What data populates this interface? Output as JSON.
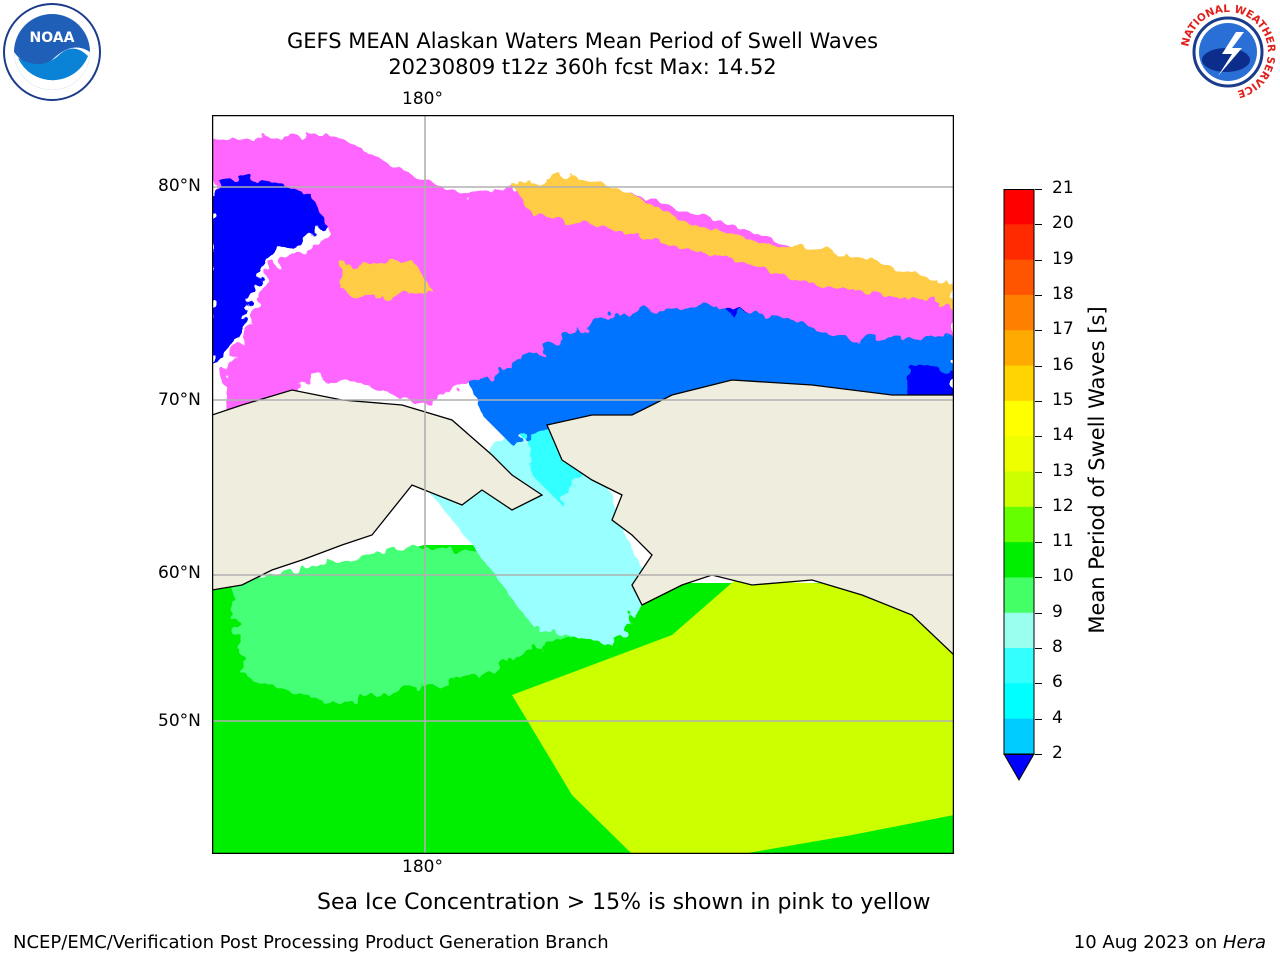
{
  "header": {
    "title_line1": "GEFS MEAN Alaskan Waters Mean Period of Swell Waves",
    "title_line2": "20230809 t12z 360h fcst   Max: 14.52"
  },
  "logos": {
    "noaa_text": "NOAA",
    "nws_ring_text": "NATIONAL WEATHER SERVICE"
  },
  "map": {
    "lon_labels": [
      "180°",
      "180°"
    ],
    "lat_labels": [
      "80°N",
      "70°N",
      "60°N",
      "50°N"
    ],
    "colors": {
      "land": "#efedde",
      "ice_blue": "#0000ff",
      "ice_pink": "#ff66ff",
      "ice_lightpink": "#ff99dd",
      "ice_orange": "#ffcc44",
      "wave_blue": "#0073ff",
      "wave_cyan": "#33ffff",
      "wave_aqua": "#99ffff",
      "wave_green": "#00ee00",
      "wave_lightgreen": "#44ff77",
      "wave_lime": "#88ff00",
      "wave_yellowgreen": "#ccff00",
      "grid": "#b0b0b0"
    }
  },
  "colorbar": {
    "label": "Mean Period of Swell Waves [s]",
    "ticks": [
      "21",
      "20",
      "19",
      "18",
      "17",
      "16",
      "15",
      "14",
      "13",
      "12",
      "11",
      "10",
      "9",
      "8",
      "6",
      "4",
      "2"
    ],
    "colors": [
      "#ff0000",
      "#ff2a00",
      "#ff5500",
      "#ff7f00",
      "#ffaa00",
      "#ffd400",
      "#ffff00",
      "#eeff00",
      "#ccff00",
      "#66ff00",
      "#00ee00",
      "#44ff66",
      "#99ffee",
      "#33ffff",
      "#00ffff",
      "#00ccff",
      "#0066ff"
    ],
    "extend_color": "#0000ff"
  },
  "note": "Sea Ice Concentration > 15% is shown in pink to yellow",
  "footer": {
    "left": "NCEP/EMC/Verification Post Processing Product Generation Branch",
    "right_date": "10 Aug 2023 on ",
    "right_host": "Hera"
  }
}
